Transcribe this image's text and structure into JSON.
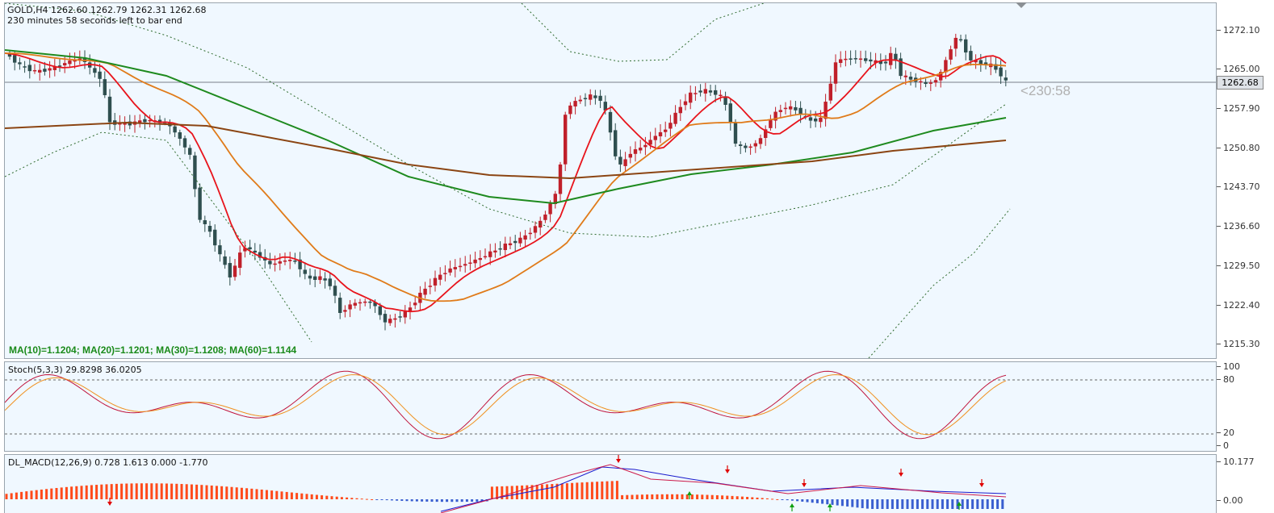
{
  "header": {
    "symbol_line": "GOLD,H4  1262.60 1262.79 1262.31 1262.68",
    "bar_countdown_text": "230 minutes 58 seconds left to bar end"
  },
  "main_chart": {
    "price_axis_ticks": [
      "1272.10",
      "1265.00",
      "1257.90",
      "1250.80",
      "1243.70",
      "1236.60",
      "1229.50",
      "1222.40",
      "1215.30"
    ],
    "current_price": "1262.68",
    "countdown_label": "<230:58",
    "ma_legend": "MA(10)=1.1204; MA(20)=1.1201; MA(30)=1.1208; MA(60)=1.1144",
    "colors": {
      "bull_candle": "#c0202a",
      "bear_candle": "#2f4f4f",
      "ma_fast": "#e8141c",
      "ma_mid": "#e07b1a",
      "ma_slow": "#1e8a1e",
      "ma_long": "#8b4513",
      "bands": "#2f6b2f"
    }
  },
  "stochastic": {
    "label": "Stoch(5,3,3) 29.8298 36.0205",
    "axis_ticks": [
      "100",
      "80",
      "20",
      "0"
    ]
  },
  "macd": {
    "label": "DL_MACD(12,26,9) 0.728 1.613 0.000 -1.770",
    "axis_ticks": [
      "10.177",
      "0.00"
    ]
  }
}
